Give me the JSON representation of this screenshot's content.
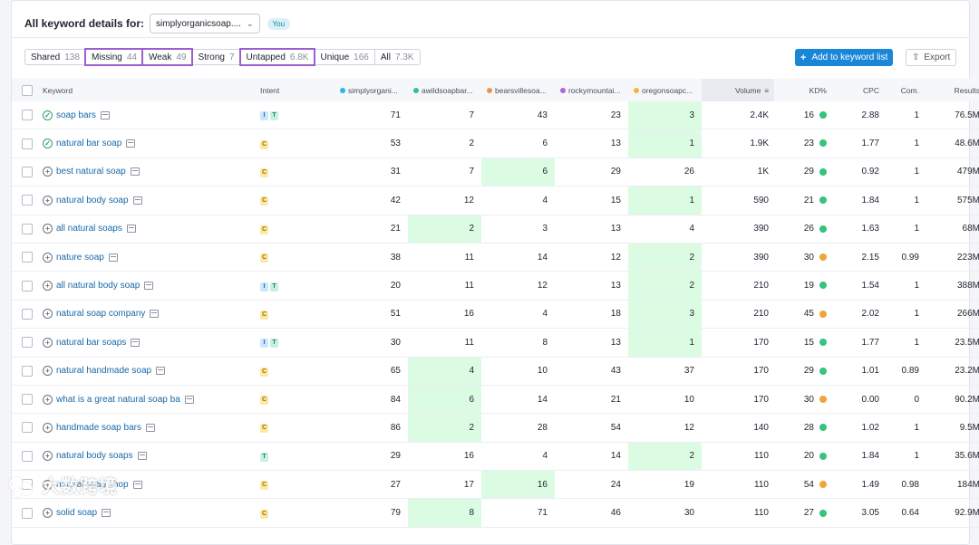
{
  "header": {
    "title": "All keyword details for:",
    "domain": "simplyorganicsoap....",
    "badge": "You"
  },
  "filters": [
    {
      "label": "Shared",
      "count": "138",
      "highlighted": false
    },
    {
      "label": "Missing",
      "count": "44",
      "highlighted": true
    },
    {
      "label": "Weak",
      "count": "49",
      "highlighted": true
    },
    {
      "label": "Strong",
      "count": "7",
      "highlighted": false
    },
    {
      "label": "Untapped",
      "count": "6.8K",
      "highlighted": true
    },
    {
      "label": "Unique",
      "count": "166",
      "highlighted": false
    },
    {
      "label": "All",
      "count": "7.3K",
      "highlighted": false
    }
  ],
  "actions": {
    "add_label": "Add to keyword list",
    "export_label": "Export"
  },
  "columns": {
    "keyword": "Keyword",
    "intent": "Intent",
    "competitors": [
      {
        "name": "simplyorgani...",
        "color": "#2bb5e8"
      },
      {
        "name": "awildsoapbar...",
        "color": "#34c08a"
      },
      {
        "name": "bearsvillesoa...",
        "color": "#e8944a"
      },
      {
        "name": "rockymountai...",
        "color": "#a86ad6"
      },
      {
        "name": "oregonsoapc...",
        "color": "#f5b43c"
      }
    ],
    "volume": "Volume",
    "kd": "KD%",
    "cpc": "CPC",
    "com": "Com.",
    "results": "Results"
  },
  "kd_colors": {
    "green": "#37c27e",
    "orange": "#f0a43a"
  },
  "rows": [
    {
      "keyword": "soap bars",
      "status": "check",
      "intent": [
        "I",
        "T"
      ],
      "comp": [
        "71",
        "7",
        "43",
        "23",
        "3"
      ],
      "best": 4,
      "volume": "2.4K",
      "kd": "16",
      "kd_color": "green",
      "cpc": "2.88",
      "com": "1",
      "results": "76.5M"
    },
    {
      "keyword": "natural bar soap",
      "status": "check",
      "intent": [
        "C"
      ],
      "comp": [
        "53",
        "2",
        "6",
        "13",
        "1"
      ],
      "best": 4,
      "volume": "1.9K",
      "kd": "23",
      "kd_color": "green",
      "cpc": "1.77",
      "com": "1",
      "results": "48.6M"
    },
    {
      "keyword": "best natural soap",
      "status": "plus",
      "intent": [
        "C"
      ],
      "comp": [
        "31",
        "7",
        "6",
        "29",
        "26"
      ],
      "best": 2,
      "volume": "1K",
      "kd": "29",
      "kd_color": "green",
      "cpc": "0.92",
      "com": "1",
      "results": "479M"
    },
    {
      "keyword": "natural body soap",
      "status": "plus",
      "intent": [
        "C"
      ],
      "comp": [
        "42",
        "12",
        "4",
        "15",
        "1"
      ],
      "best": 4,
      "volume": "590",
      "kd": "21",
      "kd_color": "green",
      "cpc": "1.84",
      "com": "1",
      "results": "575M"
    },
    {
      "keyword": "all natural soaps",
      "status": "plus",
      "intent": [
        "C"
      ],
      "comp": [
        "21",
        "2",
        "3",
        "13",
        "4"
      ],
      "best": 1,
      "volume": "390",
      "kd": "26",
      "kd_color": "green",
      "cpc": "1.63",
      "com": "1",
      "results": "68M"
    },
    {
      "keyword": "nature soap",
      "status": "plus",
      "intent": [
        "C"
      ],
      "comp": [
        "38",
        "11",
        "14",
        "12",
        "2"
      ],
      "best": 4,
      "volume": "390",
      "kd": "30",
      "kd_color": "orange",
      "cpc": "2.15",
      "com": "0.99",
      "results": "223M"
    },
    {
      "keyword": "all natural body soap",
      "status": "plus",
      "intent": [
        "I",
        "T"
      ],
      "comp": [
        "20",
        "11",
        "12",
        "13",
        "2"
      ],
      "best": 4,
      "volume": "210",
      "kd": "19",
      "kd_color": "green",
      "cpc": "1.54",
      "com": "1",
      "results": "388M"
    },
    {
      "keyword": "natural soap company",
      "status": "plus",
      "intent": [
        "C"
      ],
      "comp": [
        "51",
        "16",
        "4",
        "18",
        "3"
      ],
      "best": 4,
      "volume": "210",
      "kd": "45",
      "kd_color": "orange",
      "cpc": "2.02",
      "com": "1",
      "results": "266M"
    },
    {
      "keyword": "natural bar soaps",
      "status": "plus",
      "intent": [
        "I",
        "T"
      ],
      "comp": [
        "30",
        "11",
        "8",
        "13",
        "1"
      ],
      "best": 4,
      "volume": "170",
      "kd": "15",
      "kd_color": "green",
      "cpc": "1.77",
      "com": "1",
      "results": "23.5M"
    },
    {
      "keyword": "natural handmade soap",
      "status": "plus",
      "intent": [
        "C"
      ],
      "comp": [
        "65",
        "4",
        "10",
        "43",
        "37"
      ],
      "best": 1,
      "volume": "170",
      "kd": "29",
      "kd_color": "green",
      "cpc": "1.01",
      "com": "0.89",
      "results": "23.2M"
    },
    {
      "keyword": "what is a great natural soap ba",
      "status": "plus",
      "intent": [
        "C"
      ],
      "comp": [
        "84",
        "6",
        "14",
        "21",
        "10"
      ],
      "best": 1,
      "volume": "170",
      "kd": "30",
      "kd_color": "orange",
      "cpc": "0.00",
      "com": "0",
      "results": "90.2M"
    },
    {
      "keyword": "handmade soap bars",
      "status": "plus",
      "intent": [
        "C"
      ],
      "comp": [
        "86",
        "2",
        "28",
        "54",
        "12"
      ],
      "best": 1,
      "volume": "140",
      "kd": "28",
      "kd_color": "green",
      "cpc": "1.02",
      "com": "1",
      "results": "9.5M"
    },
    {
      "keyword": "natural body soaps",
      "status": "plus",
      "intent": [
        "T"
      ],
      "comp": [
        "29",
        "16",
        "4",
        "14",
        "2"
      ],
      "best": 4,
      "volume": "110",
      "kd": "20",
      "kd_color": "green",
      "cpc": "1.84",
      "com": "1",
      "results": "35.6M"
    },
    {
      "keyword": "natural soap shop",
      "status": "plus",
      "intent": [
        "C"
      ],
      "comp": [
        "27",
        "17",
        "16",
        "24",
        "19"
      ],
      "best": 2,
      "volume": "110",
      "kd": "54",
      "kd_color": "orange",
      "cpc": "1.49",
      "com": "0.98",
      "results": "184M"
    },
    {
      "keyword": "solid soap",
      "status": "plus",
      "intent": [
        "C"
      ],
      "comp": [
        "79",
        "8",
        "71",
        "46",
        "30"
      ],
      "best": 1,
      "volume": "110",
      "kd": "27",
      "kd_color": "green",
      "cpc": "3.05",
      "com": "0.64",
      "results": "92.9M"
    }
  ],
  "watermark": {
    "text": "大数跨境"
  }
}
